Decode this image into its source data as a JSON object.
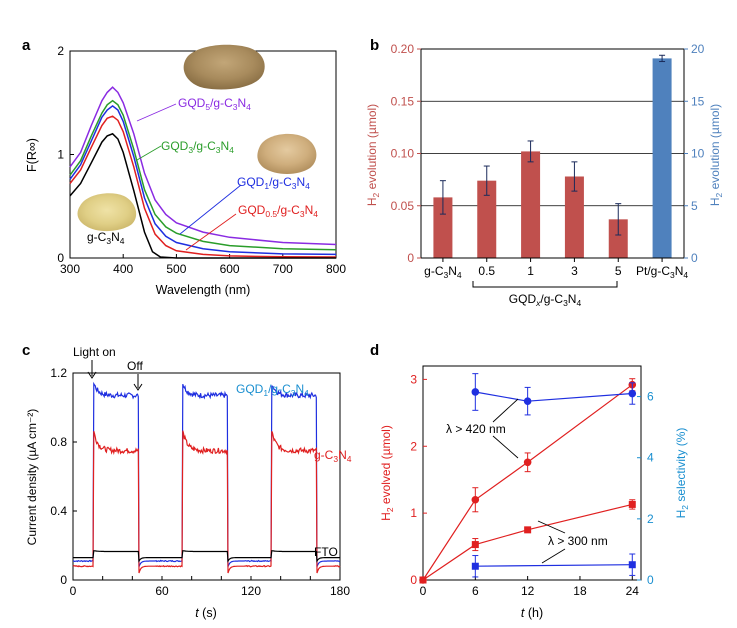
{
  "chart_data": [
    {
      "panel": "a",
      "type": "line",
      "xlabel": "Wavelength (nm)",
      "ylabel": "F(R∞)",
      "xlim": [
        300,
        800
      ],
      "ylim": [
        0,
        2
      ],
      "xticks": [
        300,
        400,
        500,
        600,
        700,
        800
      ],
      "yticks": [
        0,
        1,
        2
      ],
      "series": [
        {
          "name": "GQD5/g-C3N4",
          "label_main": "GQD",
          "label_sub": "5",
          "label_rest": "/g-C",
          "label_sub2": "3",
          "label_end": "N",
          "label_sub3": "4",
          "color": "#8a2be2",
          "points": [
            [
              300,
              0.88
            ],
            [
              320,
              1.02
            ],
            [
              340,
              1.28
            ],
            [
              360,
              1.52
            ],
            [
              370,
              1.6
            ],
            [
              380,
              1.65
            ],
            [
              390,
              1.6
            ],
            [
              400,
              1.5
            ],
            [
              420,
              1.2
            ],
            [
              440,
              0.82
            ],
            [
              460,
              0.56
            ],
            [
              480,
              0.42
            ],
            [
              500,
              0.34
            ],
            [
              550,
              0.25
            ],
            [
              600,
              0.2
            ],
            [
              700,
              0.15
            ],
            [
              800,
              0.13
            ]
          ]
        },
        {
          "name": "GQD3/g-C3N4",
          "label_main": "GQD",
          "label_sub": "3",
          "label_rest": "/g-C",
          "label_sub2": "3",
          "label_end": "N",
          "label_sub3": "4",
          "color": "#2a9d2a",
          "points": [
            [
              300,
              0.8
            ],
            [
              320,
              0.94
            ],
            [
              340,
              1.18
            ],
            [
              360,
              1.4
            ],
            [
              370,
              1.48
            ],
            [
              380,
              1.52
            ],
            [
              390,
              1.48
            ],
            [
              400,
              1.38
            ],
            [
              420,
              1.05
            ],
            [
              440,
              0.66
            ],
            [
              460,
              0.42
            ],
            [
              480,
              0.3
            ],
            [
              500,
              0.24
            ],
            [
              550,
              0.16
            ],
            [
              600,
              0.12
            ],
            [
              700,
              0.09
            ],
            [
              800,
              0.08
            ]
          ]
        },
        {
          "name": "GQD1/g-C3N4",
          "label_main": "GQD",
          "label_sub": "1",
          "label_rest": "/g-C",
          "label_sub2": "3",
          "label_end": "N",
          "label_sub3": "4",
          "color": "#1f2fe0",
          "points": [
            [
              300,
              0.76
            ],
            [
              320,
              0.9
            ],
            [
              340,
              1.13
            ],
            [
              360,
              1.36
            ],
            [
              370,
              1.43
            ],
            [
              380,
              1.47
            ],
            [
              390,
              1.43
            ],
            [
              400,
              1.32
            ],
            [
              420,
              0.98
            ],
            [
              440,
              0.58
            ],
            [
              460,
              0.33
            ],
            [
              480,
              0.21
            ],
            [
              500,
              0.15
            ],
            [
              550,
              0.09
            ],
            [
              600,
              0.06
            ],
            [
              700,
              0.04
            ],
            [
              800,
              0.035
            ]
          ]
        },
        {
          "name": "GQD0.5/g-C3N4",
          "label_main": "GQD",
          "label_sub": "0.5",
          "label_rest": "/g-C",
          "label_sub2": "3",
          "label_end": "N",
          "label_sub3": "4",
          "color": "#e02020",
          "points": [
            [
              300,
              0.72
            ],
            [
              320,
              0.85
            ],
            [
              340,
              1.07
            ],
            [
              360,
              1.28
            ],
            [
              370,
              1.35
            ],
            [
              380,
              1.37
            ],
            [
              390,
              1.33
            ],
            [
              400,
              1.22
            ],
            [
              420,
              0.88
            ],
            [
              440,
              0.48
            ],
            [
              460,
              0.23
            ],
            [
              480,
              0.12
            ],
            [
              500,
              0.07
            ],
            [
              550,
              0.035
            ],
            [
              600,
              0.02
            ],
            [
              700,
              0.012
            ],
            [
              800,
              0.01
            ]
          ]
        },
        {
          "name": "g-C3N4",
          "label_main": "g-C",
          "label_sub": "3",
          "label_rest": "N",
          "label_sub2": "4",
          "label_end": "",
          "label_sub3": "",
          "color": "#000000",
          "points": [
            [
              300,
              0.6
            ],
            [
              320,
              0.72
            ],
            [
              340,
              0.92
            ],
            [
              360,
              1.12
            ],
            [
              370,
              1.18
            ],
            [
              380,
              1.2
            ],
            [
              390,
              1.15
            ],
            [
              400,
              1.02
            ],
            [
              420,
              0.65
            ],
            [
              440,
              0.25
            ],
            [
              455,
              0.06
            ],
            [
              470,
              0.01
            ],
            [
              500,
              0.0
            ],
            [
              800,
              0.0
            ]
          ]
        }
      ]
    },
    {
      "panel": "b",
      "type": "bar",
      "ylabel_left": "H2 evolution (µmol)",
      "ylabel_right": "H2 evolution (µmol)",
      "ylim_left": [
        0,
        0.2
      ],
      "ylim_right": [
        0,
        20
      ],
      "yticks_left": [
        "0",
        "0.05",
        "0.10",
        "0.15",
        "0.20"
      ],
      "yticks_right": [
        "0",
        "5",
        "10",
        "15",
        "20"
      ],
      "categories": [
        "g-C3N4",
        "0.5",
        "1",
        "3",
        "5",
        "Pt/g-C3N4"
      ],
      "values_left": [
        0.058,
        0.074,
        0.102,
        0.078,
        0.037,
        null
      ],
      "errors_left": [
        0.016,
        0.014,
        0.01,
        0.014,
        0.015,
        null
      ],
      "values_right": [
        null,
        null,
        null,
        null,
        null,
        19.1
      ],
      "errors_right": [
        null,
        null,
        null,
        null,
        null,
        0.3
      ],
      "bar_color_left": "#c0504d",
      "bar_color_right": "#4f81bd",
      "group_label": "GQDx/g-C3N4"
    },
    {
      "panel": "c",
      "type": "line",
      "xlabel": "t (s)",
      "ylabel": "Current density (µA cm⁻²)",
      "xlim": [
        0,
        180
      ],
      "ylim": [
        0,
        1.2
      ],
      "xticks": [
        0,
        20,
        40,
        60,
        80,
        100,
        120,
        140,
        160,
        180
      ],
      "xticklabels": [
        "0",
        "",
        "",
        "60",
        "",
        "",
        "120",
        "",
        "",
        "180"
      ],
      "yticks": [
        0,
        0.4,
        0.8,
        1.2
      ],
      "yticklabels": [
        "0",
        "0.4",
        "0.8",
        "1.2"
      ],
      "light_on": [
        [
          14,
          44
        ],
        [
          74,
          104
        ],
        [
          134,
          164
        ]
      ],
      "annotations": [
        "Light on",
        "Off"
      ],
      "series": [
        {
          "name": "GQD1/g-C3N4",
          "color": "#1f2fe0",
          "dark": 0.11,
          "peak": 1.14,
          "steady": 1.07,
          "undershoot": 0.06
        },
        {
          "name": "g-C3N4",
          "color": "#e02020",
          "dark": 0.08,
          "peak": 0.86,
          "steady": 0.75,
          "undershoot": 0.02
        },
        {
          "name": "FTO",
          "color": "#000000",
          "dark": 0.13,
          "peak": 0.17,
          "steady": 0.165,
          "undershoot": 0.1
        }
      ],
      "labels": {
        "gqd": "GQD",
        "gqd_sub": "1",
        "gqd_rest": "/g-C",
        "sub3": "3",
        "n": "N",
        "sub4": "4",
        "gcn": "g-C",
        "fto": "FTO"
      }
    },
    {
      "panel": "d",
      "type": "line",
      "xlabel": "t (h)",
      "ylabel_left": "H2 evolved (µmol)",
      "ylabel_right": "H2 selectivity (%)",
      "xlim": [
        0,
        25
      ],
      "ylim_left": [
        0,
        3.2
      ],
      "ylim_right": [
        0,
        7
      ],
      "xticks": [
        0,
        6,
        12,
        18,
        24
      ],
      "yticks_left": [
        0,
        1,
        2,
        3
      ],
      "yticks_right": [
        0,
        2,
        4,
        6
      ],
      "series": [
        {
          "name": "λ > 420 nm evolved",
          "axis": "left",
          "color": "#e02020",
          "marker": "circle",
          "x": [
            0,
            6,
            12,
            24
          ],
          "y": [
            0,
            1.2,
            1.76,
            2.92
          ],
          "err": [
            0,
            0.18,
            0.14,
            0.09
          ]
        },
        {
          "name": "λ > 300 nm evolved",
          "axis": "left",
          "color": "#e02020",
          "marker": "square",
          "x": [
            0,
            6,
            12,
            24
          ],
          "y": [
            0,
            0.53,
            0.75,
            1.13
          ],
          "err": [
            0,
            0.09,
            0,
            0.07
          ]
        },
        {
          "name": "λ > 420 nm selectivity",
          "axis": "right",
          "color": "#1f2fe0",
          "marker": "circle",
          "x": [
            6,
            12,
            24
          ],
          "y": [
            6.15,
            5.85,
            6.1
          ],
          "err": [
            0.6,
            0.45,
            0.35
          ]
        },
        {
          "name": "λ > 300 nm selectivity",
          "axis": "right",
          "color": "#1f2fe0",
          "marker": "square",
          "x": [
            6,
            24
          ],
          "y": [
            0.45,
            0.5
          ],
          "err": [
            0.35,
            0.35
          ]
        }
      ],
      "annotation_420": "λ > 420 nm",
      "annotation_300": "λ > 300 nm"
    }
  ],
  "panel_letters": [
    "a",
    "b",
    "c",
    "d"
  ],
  "photo_labels": {
    "gcn_photo": "g-C3N4 powder photo",
    "gqd1_photo": "GQD1/g-C3N4 powder photo",
    "gqd5_photo": "GQD5/g-C3N4 powder photo"
  }
}
